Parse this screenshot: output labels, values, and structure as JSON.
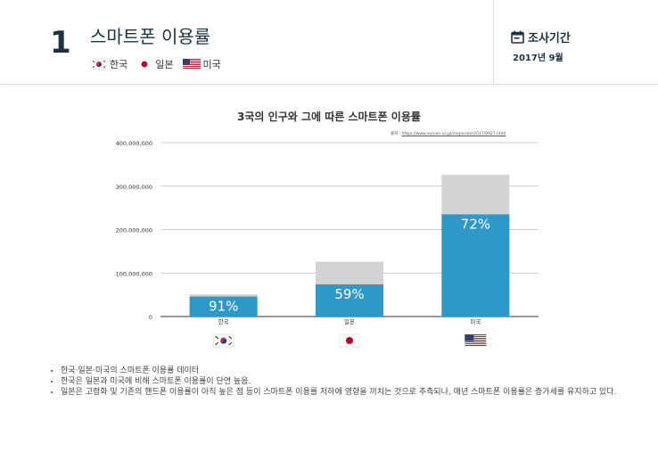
{
  "header": {
    "number": "1",
    "title": "스마트폰 이용률",
    "countries": [
      {
        "name": "한국",
        "flag": "korea-flag-icon"
      },
      {
        "name": "일본",
        "flag": "japan-flag-icon"
      },
      {
        "name": "미국",
        "flag": "usa-flag-icon"
      }
    ],
    "period_label": "조사기간",
    "period_value": "2017년 9월",
    "period_icon": "calendar-icon"
  },
  "chart_data": {
    "type": "bar",
    "title": "3국의 인구와 그에 따른 스마트폰 이용률",
    "source_prefix": "출처 :",
    "source_url": "https://www.aunion.co.jp/corporate/2017/0927.html",
    "categories": [
      "한국",
      "일본",
      "미국"
    ],
    "series": [
      {
        "values": [
          46000000,
          74000000,
          235000000
        ],
        "color": "#2c99c9"
      },
      {
        "values": [
          51000000,
          126000000,
          326000000
        ],
        "color": "#d3d3d3"
      }
    ],
    "bar_labels": [
      "91%",
      "59%",
      "72%"
    ],
    "yticks": [
      0,
      100000000,
      200000000,
      300000000,
      400000000
    ],
    "ytick_labels": [
      "0",
      "100,000,000",
      "200,000,000",
      "300,000,000",
      "400,000,000"
    ],
    "ylim": [
      0,
      400000000
    ],
    "grid": true,
    "flags": [
      "korea-flag-icon",
      "japan-flag-icon",
      "usa-flag-icon"
    ]
  },
  "notes": [
    "한국·일본·미국의 스마트폰 이용률 데이터",
    "한국은 일본과 미국에 비해 스마트폰 이용률이 단연 높음.",
    "일본은 고령화 및 기존의 핸드폰 이용률이 아직 높은 점 등이 스마트폰 이용를 저하에 영향을 끼치는 것으로 추측되나, 매년 스마트폰 이용률은 증가세를 유지하고 있다."
  ]
}
